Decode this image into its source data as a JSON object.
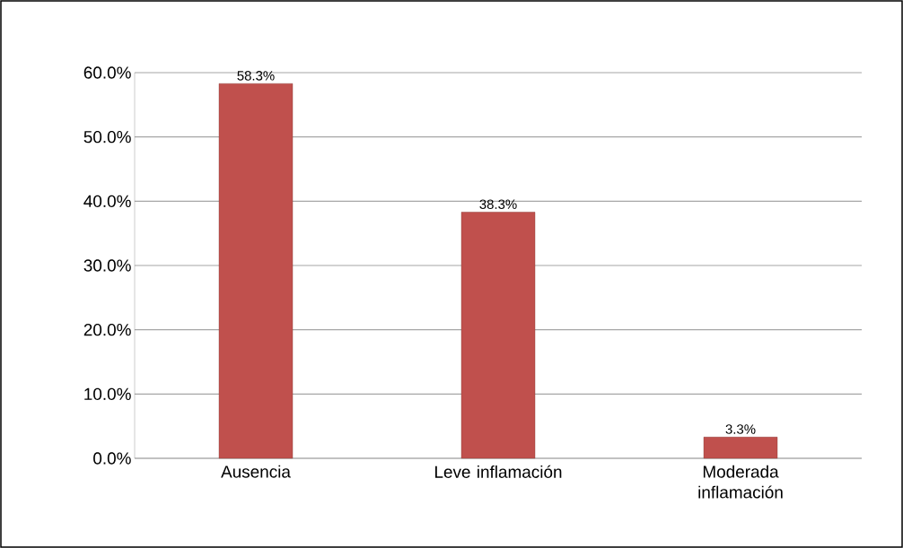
{
  "chart_data": {
    "type": "bar",
    "categories": [
      "Ausencia",
      "Leve inflamación",
      "Moderada inflamación"
    ],
    "values": [
      58.3,
      38.3,
      3.3
    ],
    "value_labels": [
      "58.3%",
      "38.3%",
      "3.3%"
    ],
    "color": "#c0504d",
    "ylim": [
      0,
      60
    ],
    "yticks": [
      {
        "value": 0,
        "label": "0.0%"
      },
      {
        "value": 10,
        "label": "10.0%"
      },
      {
        "value": 20,
        "label": "20.0%"
      },
      {
        "value": 30,
        "label": "30.0%"
      },
      {
        "value": 40,
        "label": "40.0%"
      },
      {
        "value": 50,
        "label": "50.0%"
      },
      {
        "value": 60,
        "label": "60.0%"
      }
    ],
    "grid": "y"
  }
}
